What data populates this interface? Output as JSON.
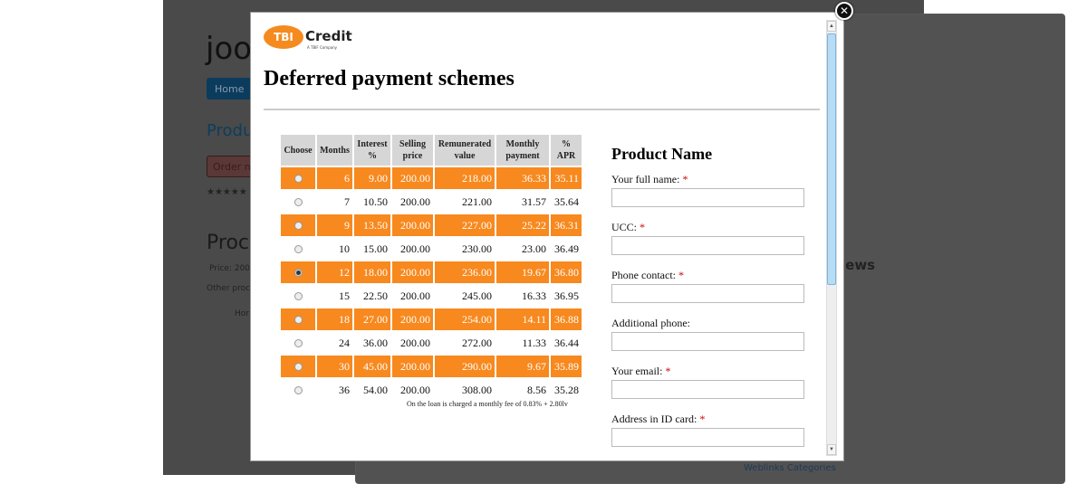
{
  "background": {
    "site_title": "joo",
    "nav_home": "Home",
    "product_heading": "Produ",
    "order_button": "Order no",
    "stars": "★★★★★",
    "product_title": "Proc",
    "price": "Price: 200",
    "other_products": "Other proc",
    "home_tab": "Hor",
    "reviews": "iews",
    "weblinks": "Weblinks Categories"
  },
  "modal": {
    "logo": {
      "mark": "TBI",
      "name": "Credit",
      "tagline": "A TBIF Company"
    },
    "title": "Deferred payment schemes",
    "close_icon": "close-icon",
    "table": {
      "headers": [
        "Choose",
        "Months",
        "Interest %",
        "Selling price",
        "Remunerated value",
        "Monthly payment",
        "% APR"
      ],
      "rows": [
        {
          "months": "6",
          "interest": "9.00",
          "price": "200.00",
          "value": "218.00",
          "monthly": "36.33",
          "apr": "35.11",
          "selected": false
        },
        {
          "months": "7",
          "interest": "10.50",
          "price": "200.00",
          "value": "221.00",
          "monthly": "31.57",
          "apr": "35.64",
          "selected": false
        },
        {
          "months": "9",
          "interest": "13.50",
          "price": "200.00",
          "value": "227.00",
          "monthly": "25.22",
          "apr": "36.31",
          "selected": false
        },
        {
          "months": "10",
          "interest": "15.00",
          "price": "200.00",
          "value": "230.00",
          "monthly": "23.00",
          "apr": "36.49",
          "selected": false
        },
        {
          "months": "12",
          "interest": "18.00",
          "price": "200.00",
          "value": "236.00",
          "monthly": "19.67",
          "apr": "36.80",
          "selected": true
        },
        {
          "months": "15",
          "interest": "22.50",
          "price": "200.00",
          "value": "245.00",
          "monthly": "16.33",
          "apr": "36.95",
          "selected": false
        },
        {
          "months": "18",
          "interest": "27.00",
          "price": "200.00",
          "value": "254.00",
          "monthly": "14.11",
          "apr": "36.88",
          "selected": false
        },
        {
          "months": "24",
          "interest": "36.00",
          "price": "200.00",
          "value": "272.00",
          "monthly": "11.33",
          "apr": "36.44",
          "selected": false
        },
        {
          "months": "30",
          "interest": "45.00",
          "price": "200.00",
          "value": "290.00",
          "monthly": "9.67",
          "apr": "35.89",
          "selected": false
        },
        {
          "months": "36",
          "interest": "54.00",
          "price": "200.00",
          "value": "308.00",
          "monthly": "8.56",
          "apr": "35.28",
          "selected": false
        }
      ],
      "fee_note": "On the loan is charged a monthly fee of 0.83% + 2.80lv"
    },
    "form": {
      "title": "Product Name",
      "fields": [
        {
          "label": "Your full name:",
          "required": true,
          "value": ""
        },
        {
          "label": "UCC:",
          "required": true,
          "value": ""
        },
        {
          "label": "Phone contact:",
          "required": true,
          "value": ""
        },
        {
          "label": "Additional phone:",
          "required": false,
          "value": ""
        },
        {
          "label": "Your email:",
          "required": true,
          "value": ""
        },
        {
          "label": "Address in ID card:",
          "required": true,
          "value": ""
        }
      ]
    },
    "colors": {
      "accent": "#f7891f",
      "header": "#d6d6d6"
    }
  }
}
